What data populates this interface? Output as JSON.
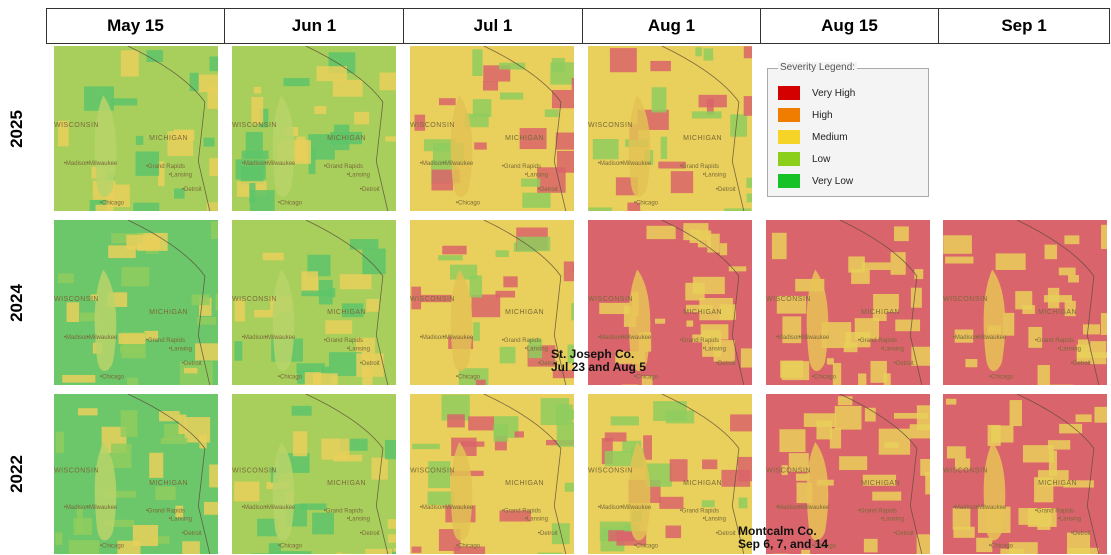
{
  "columns": [
    "May 15",
    "Jun 1",
    "Jul 1",
    "Aug 1",
    "Aug 15",
    "Sep 1"
  ],
  "rows": [
    "2025",
    "2024",
    "2022"
  ],
  "legend": {
    "title": "Severity Legend:",
    "items": [
      {
        "label": "Very High",
        "color": "#d40000"
      },
      {
        "label": "High",
        "color": "#f07d00"
      },
      {
        "label": "Medium",
        "color": "#f5d327"
      },
      {
        "label": "Low",
        "color": "#8ccf1a"
      },
      {
        "label": "Very Low",
        "color": "#16c225"
      }
    ]
  },
  "map_labels": {
    "state_mi": "MICHIGAN",
    "state_wi": "WISCONSIN",
    "cities": [
      "Milwaukee",
      "Madison",
      "Grand Rapids",
      "Lansing",
      "Detroit",
      "Chicago"
    ]
  },
  "annotations": {
    "st_joseph_line1": "St. Joseph Co.",
    "st_joseph_line2": "Jul 23 and Aug 5",
    "montcalm_line1": "Montcalm Co.",
    "montcalm_line2": "Sep 6, 7, and 14"
  },
  "map_panels": [
    {
      "year": "2025",
      "date": "May 15",
      "dominant": "Low"
    },
    {
      "year": "2025",
      "date": "Jun 1",
      "dominant": "Low"
    },
    {
      "year": "2025",
      "date": "Jul 1",
      "dominant": "Medium"
    },
    {
      "year": "2025",
      "date": "Aug 1",
      "dominant": "Medium"
    },
    {
      "year": "2024",
      "date": "May 15",
      "dominant": "Very Low"
    },
    {
      "year": "2024",
      "date": "Jun 1",
      "dominant": "Low"
    },
    {
      "year": "2024",
      "date": "Jul 1",
      "dominant": "Medium"
    },
    {
      "year": "2024",
      "date": "Aug 1",
      "dominant": "Very High"
    },
    {
      "year": "2024",
      "date": "Aug 15",
      "dominant": "Very High"
    },
    {
      "year": "2024",
      "date": "Sep 1",
      "dominant": "Very High"
    },
    {
      "year": "2022",
      "date": "May 15",
      "dominant": "Very Low"
    },
    {
      "year": "2022",
      "date": "Jun 1",
      "dominant": "Low"
    },
    {
      "year": "2022",
      "date": "Jul 1",
      "dominant": "Medium"
    },
    {
      "year": "2022",
      "date": "Aug 1",
      "dominant": "Medium"
    },
    {
      "year": "2022",
      "date": "Aug 15",
      "dominant": "Very High"
    },
    {
      "year": "2022",
      "date": "Sep 1",
      "dominant": "Very High"
    }
  ]
}
